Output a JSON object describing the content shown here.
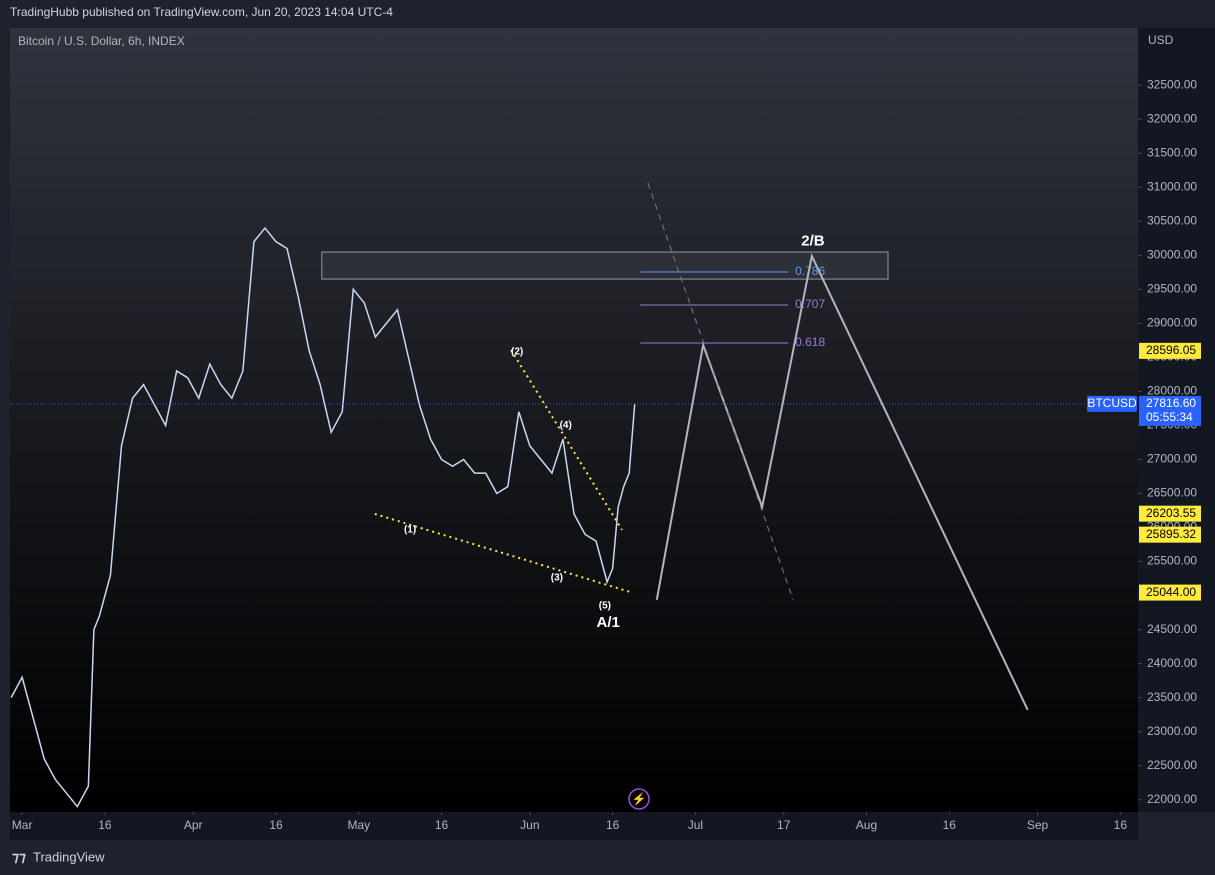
{
  "header": {
    "publisher": "TradingHubb published on TradingView.com, Jun 20, 2023 14:04 UTC-4",
    "footer": "TradingView"
  },
  "chart_data": {
    "type": "line",
    "title": "Bitcoin / U.S. Dollar, 6h, INDEX",
    "y_axis_label": "USD",
    "xlim": [
      -2.2,
      202.2
    ],
    "ylim": [
      21820,
      33340
    ],
    "xticks": [
      {
        "value": 0,
        "label": "Mar"
      },
      {
        "value": 15,
        "label": "16"
      },
      {
        "value": 31,
        "label": "Apr"
      },
      {
        "value": 46,
        "label": "16"
      },
      {
        "value": 61,
        "label": "May"
      },
      {
        "value": 76,
        "label": "16"
      },
      {
        "value": 92,
        "label": "Jun"
      },
      {
        "value": 107,
        "label": "16"
      },
      {
        "value": 122,
        "label": "Jul"
      },
      {
        "value": 138,
        "label": "17"
      },
      {
        "value": 153,
        "label": "Aug"
      },
      {
        "value": 168,
        "label": "16"
      },
      {
        "value": 184,
        "label": "Sep"
      },
      {
        "value": 199,
        "label": "16"
      }
    ],
    "yticks": [
      {
        "value": 22000,
        "label": "22000.00"
      },
      {
        "value": 22500,
        "label": "22500.00"
      },
      {
        "value": 23000,
        "label": "23000.00"
      },
      {
        "value": 23500,
        "label": "23500.00"
      },
      {
        "value": 24000,
        "label": "24000.00"
      },
      {
        "value": 24500,
        "label": "24500.00"
      },
      {
        "value": 25000,
        "label": "25000.00"
      },
      {
        "value": 25500,
        "label": "25500.00"
      },
      {
        "value": 26000,
        "label": "26000.00"
      },
      {
        "value": 26500,
        "label": "26500.00"
      },
      {
        "value": 27000,
        "label": "27000.00"
      },
      {
        "value": 27500,
        "label": "27500.00"
      },
      {
        "value": 28000,
        "label": "28000.00"
      },
      {
        "value": 28500,
        "label": "28500.00"
      },
      {
        "value": 29000,
        "label": "29000.00"
      },
      {
        "value": 29500,
        "label": "29500.00"
      },
      {
        "value": 30000,
        "label": "30000.00"
      },
      {
        "value": 30500,
        "label": "30500.00"
      },
      {
        "value": 31000,
        "label": "31000.00"
      },
      {
        "value": 31500,
        "label": "31500.00"
      },
      {
        "value": 32000,
        "label": "32000.00"
      },
      {
        "value": 32500,
        "label": "32500.00"
      }
    ],
    "series": [
      {
        "name": "BTCUSD",
        "color": "#c9d8f2",
        "x": [
          -2,
          0,
          2,
          4,
          6,
          8,
          10,
          12,
          13,
          14,
          16,
          18,
          20,
          22,
          24,
          26,
          28,
          30,
          32,
          34,
          36,
          38,
          40,
          42,
          44,
          46,
          48,
          50,
          52,
          54,
          56,
          58,
          60,
          62,
          64,
          66,
          68,
          70,
          72,
          74,
          76,
          78,
          80,
          82,
          84,
          86,
          88,
          90,
          92,
          94,
          96,
          98,
          100,
          102,
          104,
          106,
          107,
          108,
          109,
          110,
          111
        ],
        "values": [
          23500,
          23800,
          23200,
          22600,
          22300,
          22100,
          21900,
          22200,
          24500,
          24700,
          25300,
          27200,
          27900,
          28100,
          27800,
          27500,
          28300,
          28200,
          27900,
          28400,
          28100,
          27900,
          28300,
          30200,
          30400,
          30200,
          30100,
          29400,
          28600,
          28100,
          27400,
          27700,
          29500,
          29300,
          28800,
          29000,
          29200,
          28500,
          27800,
          27300,
          27000,
          26900,
          27000,
          26800,
          26800,
          26500,
          26600,
          27700,
          27200,
          27000,
          26800,
          27300,
          26200,
          25900,
          25800,
          25200,
          25400,
          26300,
          26600,
          26800,
          27816.6
        ]
      }
    ],
    "last_price": {
      "value": 27816.6,
      "label": "27816.60",
      "countdown": "05:55:34",
      "symbol": "BTCUSD"
    },
    "price_labels": [
      {
        "value": 28596.05,
        "label": "28596.05"
      },
      {
        "value": 26203.55,
        "label": "26203.55"
      },
      {
        "value": 25895.32,
        "label": "25895.32"
      },
      {
        "value": 25044,
        "label": "25044.00"
      }
    ],
    "projection": {
      "x": [
        115.0,
        123.4,
        134.1,
        143.1,
        182.2
      ],
      "y": [
        24938,
        28682,
        26303,
        29989,
        23322
      ]
    },
    "dashed_line": {
      "x": [
        113.4,
        139.7
      ],
      "y": [
        31061,
        24938
      ]
    },
    "dotted_lines": [
      {
        "x": [
          88.6,
          108.7
        ],
        "y": [
          28609,
          25965
        ]
      },
      {
        "x": [
          63.9,
          110.1
        ],
        "y": [
          26200,
          25055
        ]
      }
    ],
    "zone": {
      "x": [
        54.3,
        156.9
      ],
      "y": [
        30048,
        29651
      ]
    },
    "fib_levels": [
      {
        "value": 29754,
        "label": "0.786",
        "color": "#5b9cf6"
      },
      {
        "value": 29269,
        "label": "0.707",
        "color": "#9c7ad6"
      },
      {
        "value": 28711,
        "label": "0.618",
        "color": "#9c7ad6"
      }
    ],
    "fib_x": [
      112.0,
      138.8
    ],
    "wave_labels": [
      {
        "label": "(1)",
        "x": 70.3,
        "y": 25966
      },
      {
        "label": "(2)",
        "x": 89.7,
        "y": 28580
      },
      {
        "label": "(3)",
        "x": 96.9,
        "y": 25260
      },
      {
        "label": "(4)",
        "x": 98.5,
        "y": 27500
      },
      {
        "label": "(5)",
        "x": 105.6,
        "y": 24850
      },
      {
        "label": "A/1",
        "x": 106.2,
        "y": 24600
      },
      {
        "label": "2/B",
        "x": 143.3,
        "y": 30200
      }
    ]
  }
}
